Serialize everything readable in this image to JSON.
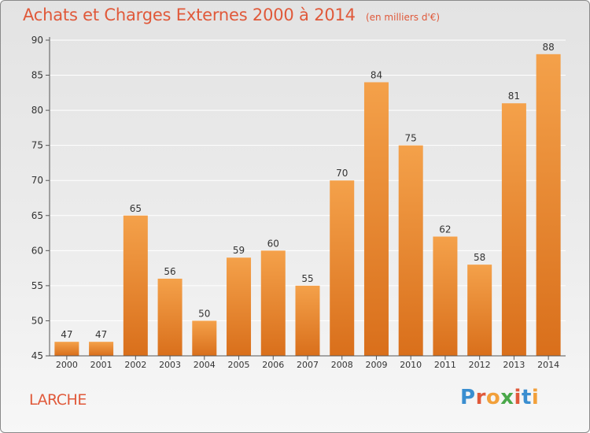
{
  "header": {
    "title": "Achats et Charges Externes 2000 à 2014",
    "unit": "(en milliers d'€)"
  },
  "footer": {
    "commune": "LARCHE",
    "logo_text": "Proxiti",
    "logo_colors": [
      "#3a8ed0",
      "#e0593a",
      "#f2a03a",
      "#4aa84a",
      "#e0593a",
      "#3a8ed0",
      "#f2a03a"
    ]
  },
  "colors": {
    "bar_top": "#f4a14a",
    "bar_bottom": "#d96f1b",
    "axis": "#555555",
    "grid": "#ffffff",
    "accent": "#e0593a"
  },
  "chart_data": {
    "type": "bar",
    "categories": [
      "2000",
      "2001",
      "2002",
      "2003",
      "2004",
      "2005",
      "2006",
      "2007",
      "2008",
      "2009",
      "2010",
      "2011",
      "2012",
      "2013",
      "2014"
    ],
    "values": [
      47,
      47,
      65,
      56,
      50,
      59,
      60,
      55,
      70,
      84,
      75,
      62,
      58,
      81,
      88
    ],
    "ylim": [
      45,
      90
    ],
    "yticks": [
      45,
      50,
      55,
      60,
      65,
      70,
      75,
      80,
      85,
      90
    ],
    "grid": true,
    "legend": "none"
  }
}
